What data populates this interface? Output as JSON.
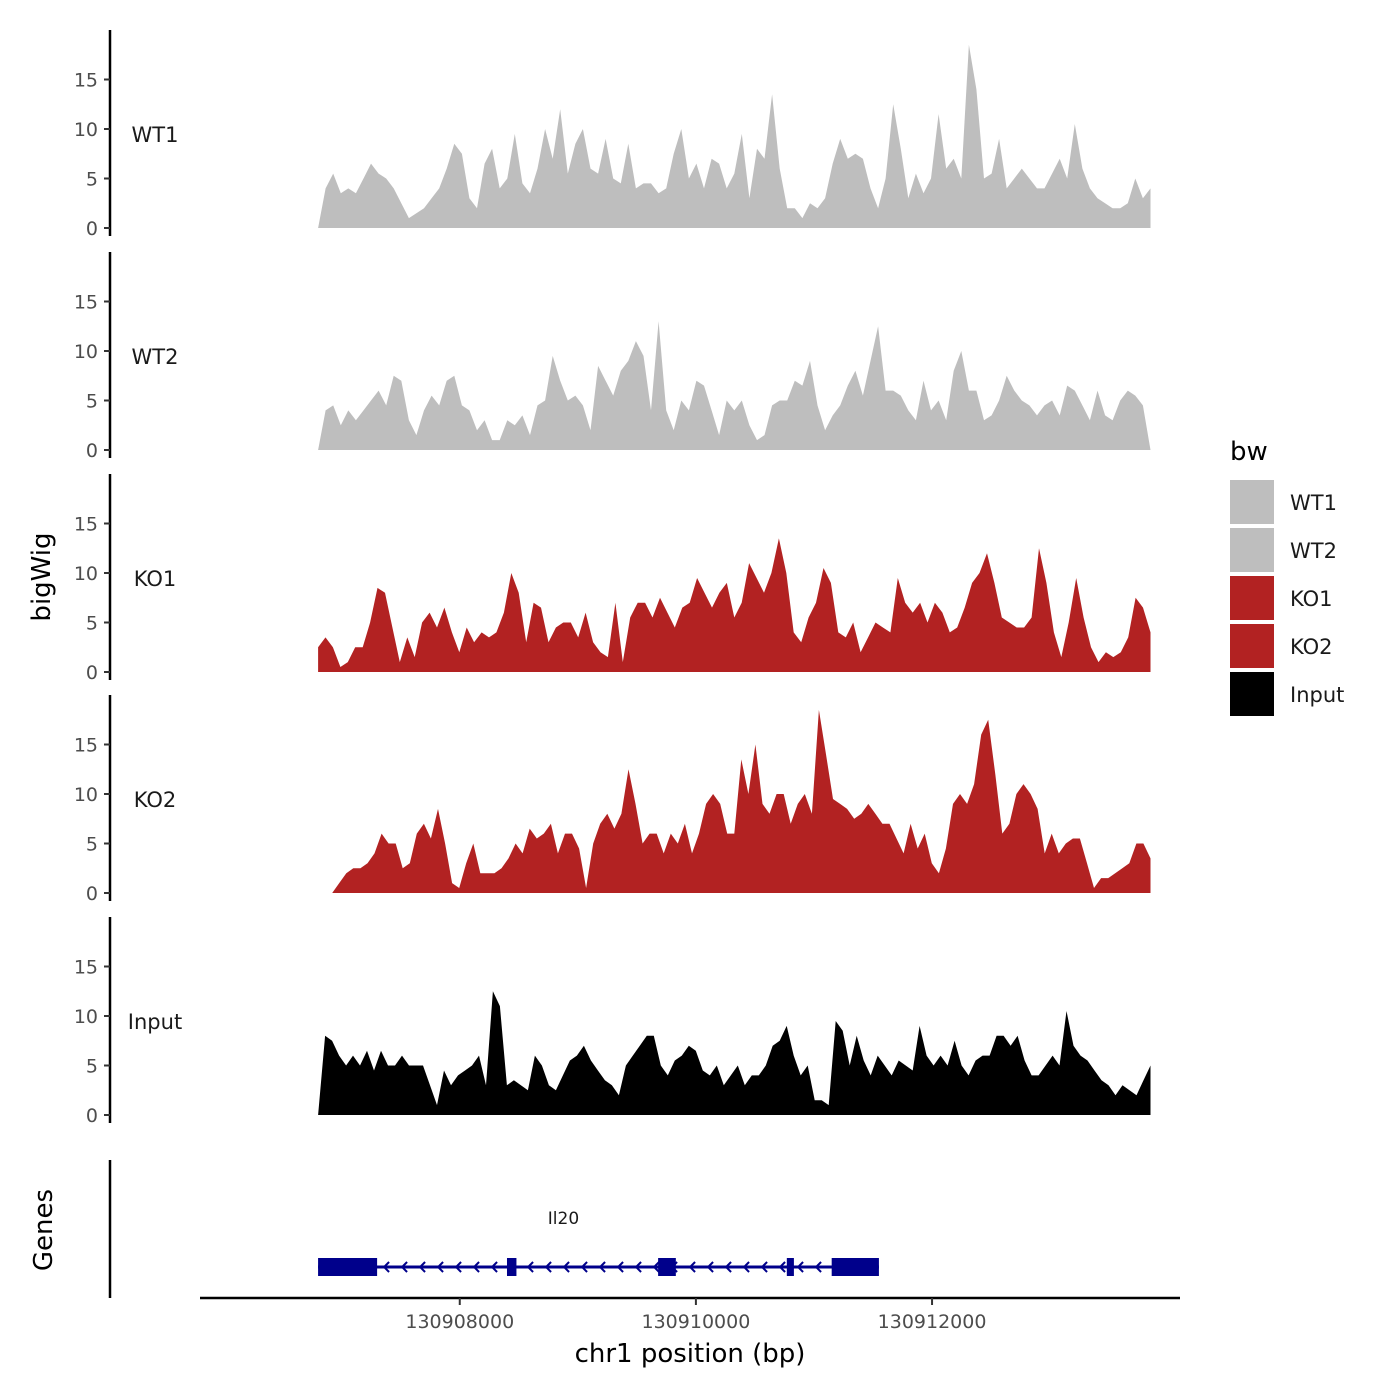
{
  "chart_data": {
    "type": "area",
    "x_range": [
      130906800,
      130913850
    ],
    "x_domain": [
      130905800,
      130914100
    ],
    "xlabel": "chr1 position (bp)",
    "x_ticks": [
      {
        "value": 130908000,
        "label": "130908000"
      },
      {
        "value": 130910000,
        "label": "130910000"
      },
      {
        "value": 130912000,
        "label": "130912000"
      }
    ],
    "ylabel": "bigWig",
    "ylim": [
      0,
      20
    ],
    "y_ticks": [
      {
        "value": 0,
        "label": "0"
      },
      {
        "value": 5,
        "label": "5"
      },
      {
        "value": 10,
        "label": "10"
      },
      {
        "value": 15,
        "label": "15"
      }
    ],
    "legend": {
      "title": "bw",
      "position": "right",
      "entries": [
        {
          "label": "WT1",
          "color": "#bebebe"
        },
        {
          "label": "WT2",
          "color": "#bebebe"
        },
        {
          "label": "KO1",
          "color": "#b22222"
        },
        {
          "label": "KO2",
          "color": "#b22222"
        },
        {
          "label": "Input",
          "color": "#000000"
        }
      ]
    },
    "series": [
      {
        "name": "WT1",
        "color": "#bebebe",
        "values": [
          0,
          4,
          5.5,
          3.5,
          4,
          3.5,
          5,
          6.5,
          5.5,
          5,
          4,
          2.5,
          1,
          1.5,
          2,
          3,
          4,
          6,
          8.5,
          7.5,
          3,
          2,
          6.5,
          8,
          4,
          5,
          9.5,
          4.5,
          3.5,
          6,
          10,
          7,
          12,
          5.5,
          8.5,
          10,
          6,
          5.5,
          9,
          5,
          4.5,
          8.5,
          4,
          4.5,
          4.5,
          3.5,
          4,
          7.5,
          10,
          5,
          6.5,
          4,
          7,
          6.5,
          4,
          5.5,
          9.5,
          3,
          8,
          7,
          13.5,
          6,
          2,
          2,
          1,
          2.5,
          2,
          3,
          6.5,
          9,
          7,
          7.5,
          7,
          4,
          2,
          5,
          12.5,
          8,
          3,
          5.5,
          3.5,
          5,
          11.5,
          6,
          7,
          5,
          18.5,
          14,
          5,
          5.5,
          9,
          4,
          5,
          6,
          5,
          4,
          4,
          5.5,
          7,
          5,
          10.5,
          6,
          4,
          3,
          2.5,
          2,
          2,
          2.5,
          5,
          3,
          4
        ]
      },
      {
        "name": "WT2",
        "color": "#bebebe",
        "values": [
          0,
          4,
          4.5,
          2.5,
          4,
          3,
          4,
          5,
          6,
          4.5,
          7.5,
          7,
          3,
          1.5,
          4,
          5.5,
          4.5,
          7,
          7.5,
          4.5,
          4,
          2,
          3,
          1,
          1,
          3,
          2.5,
          3.5,
          1.5,
          4.5,
          5,
          9.5,
          7,
          5,
          5.5,
          4.5,
          2,
          8.5,
          7,
          5.5,
          8,
          9,
          11,
          9.5,
          4,
          13,
          4,
          2,
          5,
          4,
          7,
          6.5,
          4,
          1.5,
          5,
          4,
          5,
          2.5,
          1,
          1.5,
          4.5,
          5,
          5,
          7,
          6.5,
          9,
          4.5,
          2,
          3.5,
          4.5,
          6.5,
          8,
          5.5,
          9,
          12.5,
          6,
          6,
          5.5,
          4,
          3,
          7,
          4,
          5,
          3,
          8,
          10,
          6,
          6,
          3,
          3.5,
          5,
          7.5,
          6,
          5,
          4.5,
          3.5,
          4.5,
          5,
          3.5,
          6.5,
          6,
          4.5,
          3,
          6,
          3.5,
          3,
          5,
          6,
          5.5,
          4.5,
          0
        ]
      },
      {
        "name": "KO1",
        "color": "#b22222",
        "values": [
          2.5,
          3.5,
          2.5,
          0.5,
          1,
          2.5,
          2.5,
          5,
          8.5,
          8,
          4.5,
          1,
          3.5,
          1.5,
          5,
          6,
          4.5,
          6.5,
          4,
          2,
          4.5,
          3,
          4,
          3.5,
          4,
          6,
          10,
          8,
          3,
          7,
          6.5,
          3,
          4.5,
          5,
          5,
          3.5,
          6,
          3,
          2,
          1.5,
          7,
          1,
          5.5,
          7,
          7,
          5.5,
          7.5,
          6,
          4.5,
          6.5,
          7,
          9.5,
          8,
          6.5,
          8,
          9,
          5.5,
          7,
          11,
          9.5,
          8,
          10,
          13.5,
          10,
          4,
          3,
          5.5,
          7,
          10.5,
          9,
          4,
          3.5,
          5,
          2,
          3.5,
          5,
          4.5,
          4,
          9.5,
          7,
          6,
          7,
          5,
          7,
          6,
          4,
          4.5,
          6.5,
          9,
          10,
          12,
          9,
          5.5,
          5,
          4.5,
          4.5,
          5.5,
          12.5,
          9,
          4,
          1.5,
          5,
          9.5,
          5.5,
          2.5,
          1,
          2,
          1.5,
          2,
          3.5,
          7.5,
          6.5,
          4
        ]
      },
      {
        "name": "KO2",
        "color": "#b22222",
        "values": [
          0,
          0,
          0,
          1,
          2,
          2.5,
          2.5,
          3,
          4,
          6,
          5,
          5,
          2.5,
          3,
          6,
          7,
          5.5,
          8.5,
          5,
          1,
          0.5,
          3,
          5,
          2,
          2,
          2,
          2.5,
          3.5,
          5,
          4,
          6.5,
          5.5,
          6,
          7,
          4,
          6,
          6,
          4.5,
          0.5,
          5,
          7,
          8,
          6.5,
          8,
          12.5,
          9,
          5,
          6,
          6,
          4,
          6,
          5,
          7,
          4,
          6,
          9,
          10,
          9,
          6,
          6,
          13.5,
          10,
          15,
          9,
          8,
          10,
          10,
          7,
          9,
          10,
          8,
          18.5,
          14,
          9.5,
          9,
          8.5,
          7.5,
          8,
          9,
          8,
          7,
          7,
          5.5,
          4,
          7,
          4.5,
          6,
          3,
          2,
          4.5,
          9,
          10,
          9,
          11,
          16,
          17.5,
          12,
          6,
          7,
          10,
          11,
          10,
          8.5,
          4,
          6,
          4,
          5,
          5.5,
          5.5,
          3,
          0.5,
          1.5,
          1.5,
          2,
          2.5,
          3,
          5,
          5,
          3.5
        ]
      },
      {
        "name": "Input",
        "color": "#000000",
        "values": [
          0,
          8,
          7.5,
          6,
          5,
          6,
          5,
          6.5,
          4.5,
          6.5,
          5,
          5,
          6,
          5,
          5,
          5,
          3,
          1,
          4.5,
          3,
          4,
          4.5,
          5,
          6,
          3,
          12.5,
          11,
          3,
          3.5,
          3,
          2.5,
          6,
          5,
          3,
          2.5,
          4,
          5.5,
          6,
          7,
          5.5,
          4.5,
          3.5,
          3,
          2,
          5,
          6,
          7,
          8,
          8,
          5,
          4,
          5.5,
          6,
          7,
          6.5,
          4.5,
          4,
          5,
          3,
          4,
          5,
          3,
          4,
          4,
          5,
          7,
          7.5,
          9,
          6,
          4,
          5,
          1.5,
          1.5,
          1,
          9.5,
          8.5,
          5,
          8,
          5.5,
          4,
          6,
          5,
          4,
          5.5,
          5,
          4.5,
          9,
          6,
          5,
          6,
          5,
          7.5,
          5,
          4,
          5.5,
          6,
          6,
          8,
          8,
          7,
          8,
          5.5,
          4,
          4,
          5,
          6,
          5,
          10.5,
          7,
          6,
          5.5,
          4.5,
          3.5,
          3,
          2,
          3,
          2.5,
          2,
          3.5,
          5
        ]
      }
    ],
    "genes_track": {
      "label": "Genes",
      "gene_name": "Il20",
      "strand": "-",
      "start": 130906800,
      "end": 130911550,
      "exons": [
        [
          130906800,
          130907300
        ],
        [
          130908400,
          130908480
        ],
        [
          130909680,
          130909830
        ],
        [
          130910770,
          130910830
        ],
        [
          130911150,
          130911550
        ]
      ],
      "color": "#00008b"
    }
  }
}
